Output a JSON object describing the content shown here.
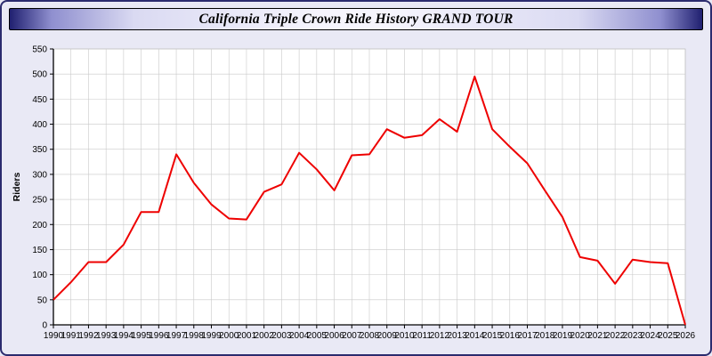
{
  "window": {
    "title": "California Triple Crown Ride History GRAND TOUR"
  },
  "chart_data": {
    "type": "line",
    "title": "California Triple Crown Ride History GRAND TOUR",
    "xlabel": "",
    "ylabel": "Riders",
    "x": [
      1990,
      1991,
      1992,
      1993,
      1994,
      1995,
      1996,
      1997,
      1998,
      1999,
      2000,
      2001,
      2002,
      2003,
      2004,
      2005,
      2006,
      2007,
      2008,
      2009,
      2010,
      2011,
      2012,
      2013,
      2014,
      2015,
      2016,
      2017,
      2018,
      2019,
      2020,
      2021,
      2022,
      2023,
      2024,
      2025,
      2026
    ],
    "series": [
      {
        "name": "Riders",
        "color": "#ee0000",
        "values": [
          50,
          85,
          125,
          125,
          160,
          225,
          225,
          340,
          283,
          240,
          212,
          210,
          265,
          280,
          343,
          310,
          268,
          338,
          340,
          390,
          373,
          378,
          410,
          385,
          495,
          390,
          355,
          322,
          268,
          215,
          135,
          128,
          82,
          130,
          125,
          123,
          0
        ]
      }
    ],
    "ylim": [
      0,
      550
    ],
    "ytick_step": 50,
    "grid": true,
    "legend_position": "none",
    "plot_bg": "#ffffff",
    "outer_bg": "#e9e9f5",
    "grid_color": "#c9c9c9",
    "axis_color": "#000000"
  }
}
